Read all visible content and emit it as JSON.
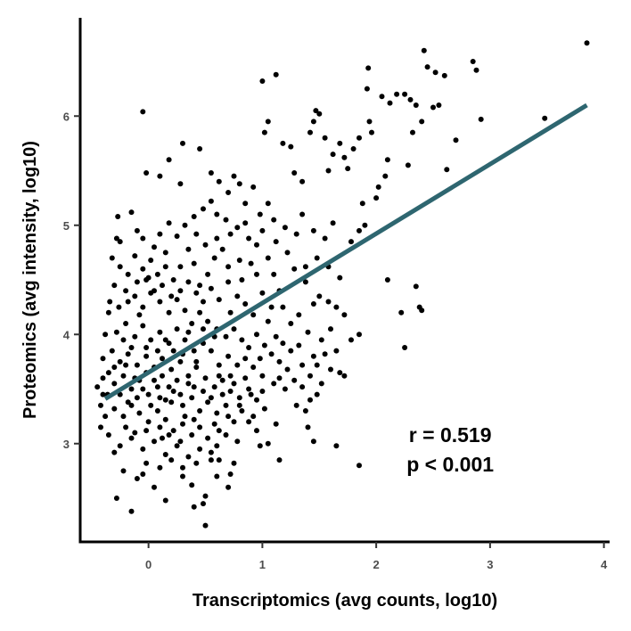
{
  "chart_data": {
    "type": "scatter",
    "title": "",
    "xlabel": "Transcriptomics (avg counts, log10)",
    "ylabel": "Proteomics (avg intensity, log10)",
    "xlim": [
      -0.6,
      4.05
    ],
    "ylim": [
      2.1,
      6.9
    ],
    "x_ticks": [
      0,
      1,
      2,
      3,
      4
    ],
    "y_ticks": [
      3,
      4,
      5,
      6
    ],
    "grid": false,
    "legend": "none",
    "colors": {
      "points": "#000000",
      "fit_line": "#2e6670",
      "axis": "#000000"
    },
    "points": [
      [
        -0.05,
        6.04
      ],
      [
        0.45,
        5.7
      ],
      [
        0.3,
        5.75
      ],
      [
        0.18,
        5.6
      ],
      [
        -0.02,
        5.48
      ],
      [
        0.1,
        5.45
      ],
      [
        0.28,
        5.38
      ],
      [
        0.55,
        5.48
      ],
      [
        0.62,
        5.4
      ],
      [
        0.7,
        5.3
      ],
      [
        0.75,
        5.45
      ],
      [
        0.8,
        5.38
      ],
      [
        0.85,
        5.2
      ],
      [
        0.92,
        5.35
      ],
      [
        1.0,
        6.32
      ],
      [
        1.12,
        6.38
      ],
      [
        1.05,
        5.95
      ],
      [
        1.02,
        5.85
      ],
      [
        1.18,
        5.75
      ],
      [
        1.25,
        5.72
      ],
      [
        1.28,
        5.48
      ],
      [
        1.35,
        5.4
      ],
      [
        1.42,
        5.85
      ],
      [
        1.45,
        5.95
      ],
      [
        1.47,
        6.05
      ],
      [
        1.5,
        6.02
      ],
      [
        1.55,
        5.8
      ],
      [
        1.58,
        5.5
      ],
      [
        1.62,
        5.65
      ],
      [
        1.68,
        5.75
      ],
      [
        1.72,
        5.62
      ],
      [
        1.75,
        5.52
      ],
      [
        1.8,
        5.7
      ],
      [
        1.85,
        5.8
      ],
      [
        1.92,
        6.25
      ],
      [
        1.94,
        5.95
      ],
      [
        1.96,
        5.85
      ],
      [
        1.93,
        6.44
      ],
      [
        2.05,
        6.18
      ],
      [
        2.12,
        6.12
      ],
      [
        2.18,
        6.2
      ],
      [
        2.25,
        6.2
      ],
      [
        2.3,
        6.15
      ],
      [
        2.35,
        6.1
      ],
      [
        2.4,
        5.95
      ],
      [
        2.42,
        6.6
      ],
      [
        2.45,
        6.45
      ],
      [
        2.52,
        6.4
      ],
      [
        2.6,
        6.37
      ],
      [
        2.55,
        6.1
      ],
      [
        2.5,
        6.08
      ],
      [
        2.32,
        5.85
      ],
      [
        2.28,
        5.55
      ],
      [
        2.1,
        5.6
      ],
      [
        2.08,
        5.45
      ],
      [
        2.02,
        5.35
      ],
      [
        2.0,
        5.25
      ],
      [
        2.62,
        5.51
      ],
      [
        2.7,
        5.78
      ],
      [
        2.85,
        6.5
      ],
      [
        2.88,
        6.42
      ],
      [
        2.92,
        5.97
      ],
      [
        3.48,
        5.98
      ],
      [
        3.85,
        6.67
      ],
      [
        1.88,
        5.2
      ],
      [
        1.78,
        4.85
      ],
      [
        1.85,
        4.95
      ],
      [
        1.9,
        5.0
      ],
      [
        2.1,
        4.5
      ],
      [
        2.35,
        4.44
      ],
      [
        2.22,
        4.2
      ],
      [
        2.38,
        4.25
      ],
      [
        2.4,
        4.22
      ],
      [
        2.25,
        3.88
      ],
      [
        1.85,
        4.0
      ],
      [
        1.78,
        3.95
      ],
      [
        1.68,
        3.65
      ],
      [
        1.72,
        3.62
      ],
      [
        1.6,
        3.68
      ],
      [
        1.52,
        3.55
      ],
      [
        1.48,
        3.45
      ],
      [
        1.42,
        3.4
      ],
      [
        1.38,
        3.3
      ],
      [
        1.4,
        3.15
      ],
      [
        1.45,
        3.02
      ],
      [
        1.65,
        2.98
      ],
      [
        1.85,
        2.8
      ],
      [
        1.15,
        2.85
      ],
      [
        1.05,
        3.0
      ],
      [
        0.95,
        3.12
      ],
      [
        0.88,
        3.2
      ],
      [
        0.75,
        2.82
      ],
      [
        0.72,
        2.72
      ],
      [
        0.7,
        2.6
      ],
      [
        0.6,
        2.7
      ],
      [
        0.55,
        2.85
      ],
      [
        0.5,
        2.52
      ],
      [
        0.48,
        2.45
      ],
      [
        0.4,
        2.42
      ],
      [
        0.5,
        2.25
      ],
      [
        0.38,
        2.62
      ],
      [
        0.3,
        2.7
      ],
      [
        0.15,
        2.48
      ],
      [
        0.05,
        2.6
      ],
      [
        -0.1,
        2.68
      ],
      [
        -0.15,
        2.38
      ],
      [
        -0.28,
        2.5
      ],
      [
        -0.22,
        2.75
      ],
      [
        -0.35,
        3.08
      ],
      [
        -0.38,
        3.25
      ],
      [
        -0.42,
        3.35
      ],
      [
        -0.45,
        3.52
      ],
      [
        -0.4,
        3.78
      ],
      [
        -0.38,
        4.0
      ],
      [
        -0.35,
        4.2
      ],
      [
        -0.3,
        4.45
      ],
      [
        -0.32,
        4.7
      ],
      [
        -0.28,
        4.88
      ],
      [
        -0.25,
        4.85
      ],
      [
        -0.27,
        5.08
      ],
      [
        -0.15,
        5.12
      ],
      [
        -0.1,
        4.95
      ],
      [
        -0.05,
        4.88
      ],
      [
        0.05,
        4.8
      ],
      [
        0.1,
        4.92
      ],
      [
        0.18,
        5.02
      ],
      [
        0.25,
        4.9
      ],
      [
        0.32,
        5.0
      ],
      [
        0.4,
        5.08
      ],
      [
        0.48,
        5.15
      ],
      [
        0.55,
        5.22
      ],
      [
        0.6,
        5.1
      ],
      [
        0.68,
        5.05
      ],
      [
        0.78,
        4.98
      ],
      [
        0.85,
        5.02
      ],
      [
        0.98,
        5.1
      ],
      [
        1.05,
        5.2
      ],
      [
        1.1,
        5.05
      ],
      [
        1.2,
        4.98
      ],
      [
        1.3,
        4.92
      ],
      [
        1.35,
        5.1
      ],
      [
        1.45,
        4.95
      ],
      [
        1.55,
        4.88
      ],
      [
        1.62,
        5.02
      ],
      [
        1.22,
        4.75
      ],
      [
        1.28,
        4.6
      ],
      [
        1.38,
        4.48
      ],
      [
        1.5,
        4.35
      ],
      [
        1.58,
        4.3
      ],
      [
        1.65,
        4.25
      ],
      [
        1.72,
        4.18
      ],
      [
        1.6,
        4.05
      ],
      [
        1.52,
        3.95
      ],
      [
        1.45,
        3.8
      ],
      [
        1.35,
        3.72
      ],
      [
        1.32,
        3.9
      ],
      [
        1.25,
        4.1
      ],
      [
        1.18,
        4.25
      ],
      [
        1.15,
        4.4
      ],
      [
        1.1,
        4.55
      ],
      [
        1.05,
        4.7
      ],
      [
        0.95,
        4.82
      ],
      [
        0.9,
        4.65
      ],
      [
        0.82,
        4.5
      ],
      [
        0.78,
        4.35
      ],
      [
        0.72,
        4.2
      ],
      [
        0.7,
        4.62
      ],
      [
        0.65,
        4.78
      ],
      [
        0.58,
        4.7
      ],
      [
        0.52,
        4.55
      ],
      [
        0.45,
        4.45
      ],
      [
        0.4,
        4.65
      ],
      [
        0.35,
        4.78
      ],
      [
        0.28,
        4.62
      ],
      [
        0.22,
        4.5
      ],
      [
        0.15,
        4.62
      ],
      [
        0.08,
        4.55
      ],
      [
        0.02,
        4.68
      ],
      [
        -0.05,
        4.6
      ],
      [
        -0.12,
        4.72
      ],
      [
        -0.18,
        4.55
      ],
      [
        -0.25,
        4.62
      ],
      [
        -0.2,
        4.4
      ],
      [
        -0.12,
        4.35
      ],
      [
        -0.05,
        4.25
      ],
      [
        0.02,
        4.38
      ],
      [
        0.1,
        4.3
      ],
      [
        0.18,
        4.2
      ],
      [
        0.25,
        4.32
      ],
      [
        0.32,
        4.22
      ],
      [
        0.38,
        4.1
      ],
      [
        0.45,
        4.2
      ],
      [
        0.52,
        4.12
      ],
      [
        0.6,
        4.05
      ],
      [
        0.68,
        3.98
      ],
      [
        0.75,
        4.05
      ],
      [
        0.82,
        3.95
      ],
      [
        0.88,
        3.88
      ],
      [
        0.95,
        4.0
      ],
      [
        1.02,
        3.9
      ],
      [
        1.08,
        3.82
      ],
      [
        1.15,
        3.75
      ],
      [
        1.22,
        3.68
      ],
      [
        1.28,
        3.58
      ],
      [
        1.2,
        3.5
      ],
      [
        1.1,
        3.55
      ],
      [
        1.0,
        3.62
      ],
      [
        0.92,
        3.7
      ],
      [
        0.85,
        3.6
      ],
      [
        0.78,
        3.72
      ],
      [
        0.7,
        3.8
      ],
      [
        0.62,
        3.72
      ],
      [
        0.55,
        3.85
      ],
      [
        0.48,
        3.92
      ],
      [
        0.4,
        3.85
      ],
      [
        0.32,
        3.95
      ],
      [
        0.25,
        4.05
      ],
      [
        0.18,
        3.92
      ],
      [
        0.1,
        4.02
      ],
      [
        0.02,
        3.95
      ],
      [
        -0.05,
        4.08
      ],
      [
        -0.12,
        3.98
      ],
      [
        -0.2,
        4.1
      ],
      [
        -0.28,
        4.02
      ],
      [
        -0.32,
        3.85
      ],
      [
        -0.25,
        3.75
      ],
      [
        -0.18,
        3.82
      ],
      [
        -0.1,
        3.72
      ],
      [
        -0.02,
        3.8
      ],
      [
        0.05,
        3.7
      ],
      [
        0.12,
        3.78
      ],
      [
        0.2,
        3.68
      ],
      [
        0.28,
        3.75
      ],
      [
        0.35,
        3.62
      ],
      [
        0.42,
        3.7
      ],
      [
        0.5,
        3.6
      ],
      [
        0.58,
        3.52
      ],
      [
        0.65,
        3.58
      ],
      [
        0.72,
        3.48
      ],
      [
        0.8,
        3.42
      ],
      [
        0.88,
        3.5
      ],
      [
        0.95,
        3.4
      ],
      [
        1.02,
        3.32
      ],
      [
        0.92,
        3.25
      ],
      [
        0.82,
        3.3
      ],
      [
        0.75,
        3.2
      ],
      [
        0.68,
        3.35
      ],
      [
        0.6,
        3.28
      ],
      [
        0.52,
        3.38
      ],
      [
        0.45,
        3.3
      ],
      [
        0.38,
        3.42
      ],
      [
        0.3,
        3.35
      ],
      [
        0.22,
        3.48
      ],
      [
        0.15,
        3.4
      ],
      [
        0.08,
        3.52
      ],
      [
        0.0,
        3.45
      ],
      [
        -0.08,
        3.58
      ],
      [
        -0.15,
        3.5
      ],
      [
        -0.22,
        3.62
      ],
      [
        -0.3,
        3.55
      ],
      [
        -0.36,
        3.45
      ],
      [
        -0.3,
        3.32
      ],
      [
        -0.22,
        3.25
      ],
      [
        -0.15,
        3.35
      ],
      [
        -0.08,
        3.28
      ],
      [
        0.0,
        3.2
      ],
      [
        0.08,
        3.3
      ],
      [
        0.15,
        3.22
      ],
      [
        0.22,
        3.12
      ],
      [
        0.3,
        3.18
      ],
      [
        0.38,
        3.08
      ],
      [
        0.45,
        3.15
      ],
      [
        0.52,
        3.05
      ],
      [
        0.6,
        2.98
      ],
      [
        0.68,
        3.08
      ],
      [
        0.55,
        2.92
      ],
      [
        0.45,
        2.95
      ],
      [
        0.35,
        2.88
      ],
      [
        0.25,
        2.98
      ],
      [
        0.15,
        2.9
      ],
      [
        0.05,
        3.02
      ],
      [
        -0.05,
        2.95
      ],
      [
        -0.15,
        3.05
      ],
      [
        -0.25,
        2.98
      ],
      [
        -0.2,
        3.15
      ],
      [
        -0.12,
        3.1
      ],
      [
        -0.02,
        3.12
      ],
      [
        0.12,
        3.05
      ],
      [
        0.28,
        3.02
      ],
      [
        0.42,
        2.82
      ],
      [
        0.3,
        2.78
      ],
      [
        0.2,
        2.85
      ],
      [
        0.1,
        2.78
      ],
      [
        -0.02,
        2.82
      ],
      [
        0.62,
        3.12
      ],
      [
        0.48,
        3.48
      ],
      [
        0.35,
        3.55
      ],
      [
        0.25,
        3.58
      ],
      [
        0.18,
        3.52
      ],
      [
        0.12,
        3.62
      ],
      [
        0.05,
        3.58
      ],
      [
        -0.02,
        3.65
      ],
      [
        -0.1,
        3.42
      ],
      [
        -0.18,
        3.38
      ],
      [
        -0.25,
        3.45
      ],
      [
        0.02,
        3.35
      ],
      [
        0.1,
        3.42
      ],
      [
        0.2,
        3.38
      ],
      [
        0.28,
        3.45
      ],
      [
        0.4,
        3.52
      ],
      [
        0.55,
        3.42
      ],
      [
        0.65,
        3.45
      ],
      [
        0.75,
        3.55
      ],
      [
        0.85,
        3.78
      ],
      [
        0.98,
        3.78
      ],
      [
        1.05,
        4.12
      ],
      [
        1.12,
        3.98
      ],
      [
        0.92,
        4.18
      ],
      [
        0.85,
        4.28
      ],
      [
        0.62,
        4.32
      ],
      [
        0.55,
        4.42
      ],
      [
        0.48,
        4.3
      ],
      [
        0.42,
        4.38
      ],
      [
        0.35,
        4.48
      ],
      [
        0.28,
        4.4
      ],
      [
        0.2,
        4.35
      ],
      [
        0.12,
        4.45
      ],
      [
        0.05,
        4.4
      ],
      [
        -0.02,
        4.5
      ],
      [
        -0.1,
        4.48
      ],
      [
        -0.18,
        4.3
      ],
      [
        -0.26,
        4.25
      ],
      [
        -0.34,
        4.3
      ],
      [
        -0.35,
        3.65
      ],
      [
        -0.4,
        3.45
      ],
      [
        -0.42,
        3.15
      ],
      [
        -0.3,
        2.92
      ],
      [
        -0.05,
        2.72
      ],
      [
        0.62,
        2.85
      ],
      [
        0.78,
        3.02
      ],
      [
        0.98,
        2.98
      ],
      [
        1.12,
        3.18
      ],
      [
        1.3,
        3.35
      ],
      [
        1.35,
        3.52
      ],
      [
        1.42,
        3.62
      ],
      [
        1.48,
        3.72
      ],
      [
        1.55,
        3.82
      ],
      [
        1.65,
        3.85
      ],
      [
        1.4,
        4.02
      ],
      [
        1.32,
        4.18
      ],
      [
        1.45,
        4.28
      ],
      [
        1.38,
        4.62
      ],
      [
        1.48,
        4.7
      ],
      [
        1.58,
        4.62
      ],
      [
        1.68,
        4.52
      ],
      [
        1.12,
        4.85
      ],
      [
        1.0,
        4.95
      ],
      [
        0.88,
        4.88
      ],
      [
        0.72,
        4.92
      ],
      [
        0.6,
        4.88
      ],
      [
        0.5,
        4.82
      ],
      [
        0.42,
        4.92
      ],
      [
        0.15,
        4.75
      ],
      [
        0.0,
        4.52
      ],
      [
        -0.08,
        4.18
      ],
      [
        0.7,
        4.48
      ],
      [
        0.8,
        4.68
      ],
      [
        0.95,
        4.55
      ],
      [
        1.0,
        4.38
      ],
      [
        1.08,
        4.25
      ],
      [
        0.58,
        3.98
      ],
      [
        0.48,
        4.05
      ],
      [
        0.35,
        4.02
      ],
      [
        0.22,
        3.85
      ],
      [
        0.15,
        3.95
      ],
      [
        -0.02,
        3.88
      ],
      [
        -0.15,
        3.88
      ],
      [
        -0.22,
        3.95
      ],
      [
        -0.3,
        3.7
      ],
      [
        -0.4,
        3.6
      ],
      [
        0.1,
        3.15
      ],
      [
        0.18,
        3.08
      ],
      [
        0.32,
        3.25
      ],
      [
        0.4,
        3.22
      ],
      [
        0.58,
        3.18
      ],
      [
        0.7,
        3.25
      ],
      [
        0.8,
        3.35
      ],
      [
        0.9,
        3.45
      ],
      [
        1.0,
        3.48
      ],
      [
        1.15,
        3.6
      ],
      [
        1.25,
        3.85
      ],
      [
        1.18,
        3.92
      ],
      [
        0.72,
        3.62
      ],
      [
        0.62,
        3.62
      ],
      [
        0.42,
        3.75
      ],
      [
        0.3,
        3.82
      ],
      [
        0.08,
        3.85
      ],
      [
        -0.05,
        3.5
      ],
      [
        -0.12,
        3.6
      ],
      [
        -0.2,
        3.72
      ]
    ],
    "fit_line": {
      "x": [
        -0.38,
        3.85
      ],
      "y": [
        3.41,
        6.1
      ]
    },
    "annotation": {
      "line1": "r = 0.519",
      "line2": "p < 0.001",
      "x": 2.65,
      "y": 2.9
    }
  }
}
